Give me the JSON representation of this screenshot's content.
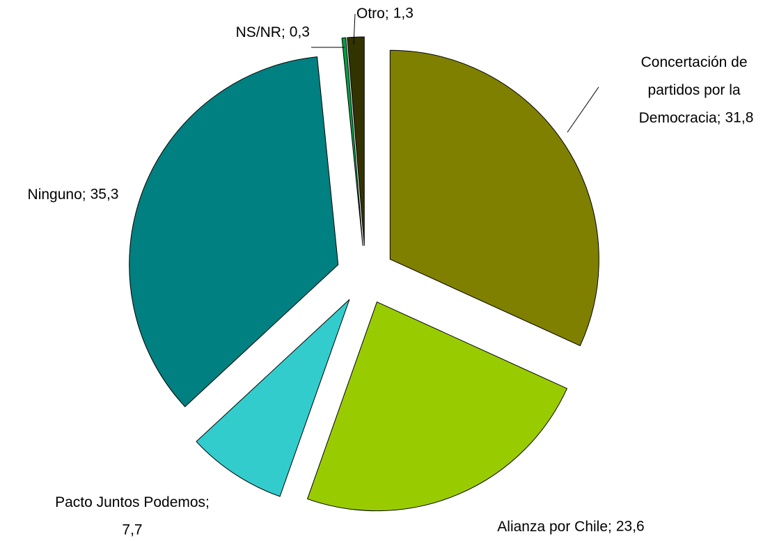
{
  "chart_data": {
    "type": "pie",
    "categories": [
      "Concertación de partidos por la Democracia;",
      "Alianza por Chile;",
      "Pacto Juntos Podemos;",
      "Ninguno;",
      "NS/NR;",
      "Otro;"
    ],
    "values": [
      31.8,
      23.6,
      7.7,
      35.3,
      0.3,
      1.3
    ],
    "value_labels": [
      "31,8",
      "23,6",
      "7,7",
      "35,3",
      "0,3",
      "1,3"
    ],
    "colors": [
      "#808000",
      "#99cc00",
      "#33cccc",
      "#008080",
      "#00a040",
      "#333300"
    ]
  }
}
